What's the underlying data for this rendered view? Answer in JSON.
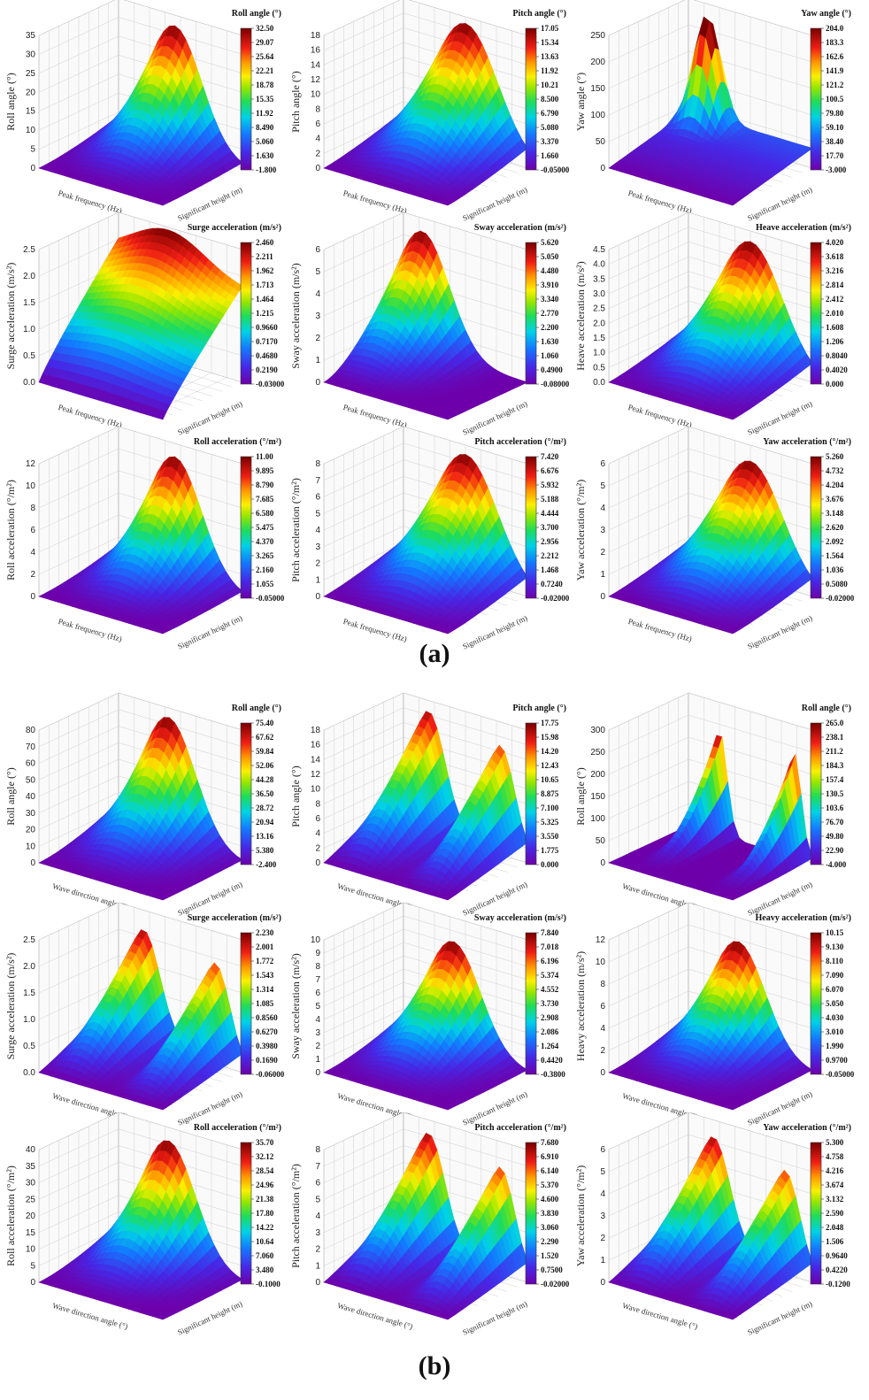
{
  "figure": {
    "label_a": "(a)",
    "label_b": "(b)"
  },
  "chart_data": [
    {
      "type": "surface",
      "group": "a",
      "title": "Roll angle (°)",
      "zlabel": "Roll angle (°)",
      "xlabel": "Peak frequency (Hz)",
      "ylabel": "Significant height (m)",
      "zticks": [
        "0",
        "5",
        "10",
        "15",
        "20",
        "25",
        "30",
        "35"
      ],
      "colorbar": [
        "32.50",
        "29.07",
        "25.64",
        "22.21",
        "18.78",
        "15.35",
        "11.92",
        "8.490",
        "5.060",
        "1.630",
        "-1.800"
      ],
      "peak": {
        "frac": 0.55,
        "height": 0.92
      },
      "shape": "back-peak"
    },
    {
      "type": "surface",
      "group": "a",
      "title": "Pitch angle (°)",
      "zlabel": "Pitch angle (°)",
      "xlabel": "Peak frequency (Hz)",
      "ylabel": "Significant height (m)",
      "zticks": [
        "0",
        "2",
        "4",
        "6",
        "8",
        "10",
        "12",
        "14",
        "16",
        "18"
      ],
      "colorbar": [
        "17.05",
        "15.34",
        "13.63",
        "11.92",
        "10.21",
        "8.500",
        "6.790",
        "5.080",
        "3.370",
        "1.660",
        "-0.05000"
      ],
      "peak": {
        "frac": 0.5,
        "height": 0.95
      },
      "shape": "center-peak"
    },
    {
      "type": "surface",
      "group": "a",
      "title": "Yaw angle (°)",
      "zlabel": "Yaw angle (°)",
      "xlabel": "Peak frequency (Hz)",
      "ylabel": "Significant height (m)",
      "zticks": [
        "0",
        "50",
        "100",
        "150",
        "200",
        "250"
      ],
      "colorbar": [
        "204.0",
        "183.3",
        "162.6",
        "141.9",
        "121.2",
        "100.5",
        "79.80",
        "59.10",
        "38.40",
        "17.70",
        "-3.000"
      ],
      "peak": {
        "frac": 0.65,
        "height": 0.82
      },
      "shape": "spike"
    },
    {
      "type": "surface",
      "group": "a",
      "title": "Surge acceleration (m/s²)",
      "zlabel": "Surge acceleration (m/s²)",
      "xlabel": "Peak frequency (Hz)",
      "ylabel": "Significant height (m)",
      "zticks": [
        "0.0",
        "0.5",
        "1.0",
        "1.5",
        "2.0",
        "2.5"
      ],
      "colorbar": [
        "2.460",
        "2.211",
        "1.962",
        "1.713",
        "1.464",
        "1.215",
        "0.9660",
        "0.7170",
        "0.4680",
        "0.2190",
        "-0.03000"
      ],
      "peak": {
        "frac": 0.4,
        "height": 0.98
      },
      "shape": "ridge"
    },
    {
      "type": "surface",
      "group": "a",
      "title": "Sway acceleration (m/s²)",
      "zlabel": "Sway acceleration (m/s²)",
      "xlabel": "Peak frequency (Hz)",
      "ylabel": "Significant height (m)",
      "zticks": [
        "0",
        "1",
        "2",
        "3",
        "4",
        "5",
        "6"
      ],
      "colorbar": [
        "5.620",
        "5.050",
        "4.480",
        "3.910",
        "3.340",
        "2.770",
        "2.200",
        "1.630",
        "1.060",
        "0.4900",
        "-0.08000"
      ],
      "peak": {
        "frac": 0.85,
        "height": 0.9
      },
      "shape": "back-peak"
    },
    {
      "type": "surface",
      "group": "a",
      "title": "Heave acceleration (m/s²)",
      "zlabel": "Heave acceleration (m/s²)",
      "xlabel": "Peak frequency (Hz)",
      "ylabel": "Significant height (m)",
      "zticks": [
        "0.0",
        "0.5",
        "1.0",
        "1.5",
        "2.0",
        "2.5",
        "3.0",
        "3.5",
        "4.0",
        "4.5"
      ],
      "colorbar": [
        "4.020",
        "3.618",
        "3.216",
        "2.814",
        "2.412",
        "2.010",
        "1.608",
        "1.206",
        "0.8040",
        "0.4020",
        "0.000"
      ],
      "peak": {
        "frac": 0.5,
        "height": 0.92
      },
      "shape": "center-peak"
    },
    {
      "type": "surface",
      "group": "a",
      "title": "Roll acceleration (°/m²)",
      "zlabel": "Roll acceleration (°/m²)",
      "xlabel": "Peak frequency (Hz)",
      "ylabel": "Significant height (m)",
      "zticks": [
        "0",
        "2",
        "4",
        "6",
        "8",
        "10",
        "12"
      ],
      "colorbar": [
        "11.00",
        "9.895",
        "8.790",
        "7.685",
        "6.580",
        "5.475",
        "4.370",
        "3.265",
        "2.160",
        "1.055",
        "-0.05000"
      ],
      "peak": {
        "frac": 0.55,
        "height": 0.9
      },
      "shape": "back-peak"
    },
    {
      "type": "surface",
      "group": "a",
      "title": "Pitch acceleration (°/m²)",
      "zlabel": "Pitch acceleration (°/m²)",
      "xlabel": "Peak frequency (Hz)",
      "ylabel": "Significant height (m)",
      "zticks": [
        "0",
        "1",
        "2",
        "3",
        "4",
        "5",
        "6",
        "7",
        "8"
      ],
      "colorbar": [
        "7.420",
        "6.676",
        "5.932",
        "5.188",
        "4.444",
        "3.700",
        "2.956",
        "2.212",
        "1.468",
        "0.7240",
        "-0.02000"
      ],
      "peak": {
        "frac": 0.5,
        "height": 0.93
      },
      "shape": "center-peak"
    },
    {
      "type": "surface",
      "group": "a",
      "title": "Yaw acceleration (°/m²)",
      "zlabel": "Yaw acceleration (°/m²)",
      "xlabel": "Peak frequency (Hz)",
      "ylabel": "Significant height (m)",
      "zticks": [
        "0",
        "1",
        "2",
        "3",
        "4",
        "5",
        "6"
      ],
      "colorbar": [
        "5.260",
        "4.732",
        "4.204",
        "3.676",
        "3.148",
        "2.620",
        "2.092",
        "1.564",
        "1.036",
        "0.5080",
        "-0.02000"
      ],
      "peak": {
        "frac": 0.5,
        "height": 0.88
      },
      "shape": "center-peak"
    },
    {
      "type": "surface",
      "group": "b",
      "title": "Roll angle (°)",
      "zlabel": "Roll angle (°)",
      "xlabel": "Wave direction angle (°)",
      "ylabel": "Significant height (m)",
      "zticks": [
        "0",
        "10",
        "20",
        "30",
        "40",
        "50",
        "60",
        "70",
        "80"
      ],
      "colorbar": [
        "75.40",
        "67.62",
        "59.84",
        "52.06",
        "44.28",
        "36.50",
        "28.72",
        "20.94",
        "13.16",
        "5.380",
        "-2.400"
      ],
      "peak": {
        "frac": 0.6,
        "height": 0.93
      },
      "shape": "back-peak"
    },
    {
      "type": "surface",
      "group": "b",
      "title": "Pitch angle (°)",
      "zlabel": "Pitch angle (°)",
      "xlabel": "Wave direction angle (°)",
      "ylabel": "Significant height (m)",
      "zticks": [
        "0",
        "2",
        "4",
        "6",
        "8",
        "10",
        "12",
        "14",
        "16",
        "18"
      ],
      "colorbar": [
        "17.75",
        "15.98",
        "14.20",
        "12.43",
        "10.65",
        "8.875",
        "7.100",
        "5.325",
        "3.550",
        "1.775",
        "0.000"
      ],
      "peak": {
        "frac": 0.45,
        "height": 0.97
      },
      "shape": "twin-ridge"
    },
    {
      "type": "surface",
      "group": "b",
      "title": "Roll angle (°)",
      "zlabel": "Roll angle (°)",
      "xlabel": "Wave direction angle (°)",
      "ylabel": "Significant height (m)",
      "zticks": [
        "0",
        "50",
        "100",
        "150",
        "200",
        "250",
        "300"
      ],
      "colorbar": [
        "265.0",
        "238.1",
        "211.2",
        "184.3",
        "157.4",
        "130.5",
        "103.6",
        "76.70",
        "49.80",
        "22.90",
        "-4.000"
      ],
      "peak": {
        "frac": 0.45,
        "height": 0.8
      },
      "shape": "twin-spike"
    },
    {
      "type": "surface",
      "group": "b",
      "title": "Surge acceleration (m/s²)",
      "zlabel": "Surge acceleration (m/s²)",
      "xlabel": "Wave direction angle (°)",
      "ylabel": "Significant height (m)",
      "zticks": [
        "0.0",
        "0.5",
        "1.0",
        "1.5",
        "2.0",
        "2.5"
      ],
      "colorbar": [
        "2.230",
        "2.001",
        "1.772",
        "1.543",
        "1.314",
        "1.085",
        "0.8560",
        "0.6270",
        "0.3980",
        "0.1690",
        "-0.06000"
      ],
      "peak": {
        "frac": 0.45,
        "height": 0.9
      },
      "shape": "twin-ridge"
    },
    {
      "type": "surface",
      "group": "b",
      "title": "Sway acceleration (m/s²)",
      "zlabel": "Sway acceleration (m/s²)",
      "xlabel": "Wave direction angle (°)",
      "ylabel": "Significant height (m)",
      "zticks": [
        "0",
        "1",
        "2",
        "3",
        "4",
        "5",
        "6",
        "7",
        "8",
        "9",
        "10"
      ],
      "colorbar": [
        "7.840",
        "7.018",
        "6.196",
        "5.374",
        "4.552",
        "3.730",
        "2.908",
        "2.086",
        "1.264",
        "0.4420",
        "-0.3800"
      ],
      "peak": {
        "frac": 0.6,
        "height": 0.82
      },
      "shape": "back-peak"
    },
    {
      "type": "surface",
      "group": "b",
      "title": "Heavy acceleration (m/s²)",
      "zlabel": "Heavy acceleration (m/s²)",
      "xlabel": "Wave direction angle (°)",
      "ylabel": "Significant height (m)",
      "zticks": [
        "0",
        "2",
        "4",
        "6",
        "8",
        "10",
        "12"
      ],
      "colorbar": [
        "10.15",
        "9.130",
        "8.110",
        "7.090",
        "6.070",
        "5.050",
        "4.030",
        "3.010",
        "1.990",
        "0.9700",
        "-0.05000"
      ],
      "peak": {
        "frac": 0.6,
        "height": 0.82
      },
      "shape": "back-peak"
    },
    {
      "type": "surface",
      "group": "b",
      "title": "Roll acceleration (°/m²)",
      "zlabel": "Roll acceleration (°/m²)",
      "xlabel": "Wave direction angle (°)",
      "ylabel": "Significant height (m)",
      "zticks": [
        "0",
        "5",
        "10",
        "15",
        "20",
        "25",
        "30",
        "35",
        "40"
      ],
      "colorbar": [
        "35.70",
        "32.12",
        "28.54",
        "24.96",
        "21.38",
        "17.80",
        "14.22",
        "10.64",
        "7.060",
        "3.480",
        "-0.1000"
      ],
      "peak": {
        "frac": 0.6,
        "height": 0.9
      },
      "shape": "back-peak"
    },
    {
      "type": "surface",
      "group": "b",
      "title": "Pitch acceleration (°/m²)",
      "zlabel": "Pitch acceleration (°/m²)",
      "xlabel": "Wave direction angle (°)",
      "ylabel": "Significant height (m)",
      "zticks": [
        "0",
        "1",
        "2",
        "3",
        "4",
        "5",
        "6",
        "7",
        "8"
      ],
      "colorbar": [
        "7.680",
        "6.910",
        "6.140",
        "5.370",
        "4.600",
        "3.830",
        "3.060",
        "2.290",
        "1.520",
        "0.7500",
        "-0.02000"
      ],
      "peak": {
        "frac": 0.45,
        "height": 0.95
      },
      "shape": "twin-ridge"
    },
    {
      "type": "surface",
      "group": "b",
      "title": "Yaw acceleration (°/m²)",
      "zlabel": "Yaw acceleration (°/m²)",
      "xlabel": "Wave direction angle (°)",
      "ylabel": "Significant height (m)",
      "zticks": [
        "0",
        "1",
        "2",
        "3",
        "4",
        "5",
        "6"
      ],
      "colorbar": [
        "5.300",
        "4.758",
        "4.216",
        "3.674",
        "3.132",
        "2.590",
        "2.048",
        "1.506",
        "0.9640",
        "0.4220",
        "-0.1200"
      ],
      "peak": {
        "frac": 0.45,
        "height": 0.92
      },
      "shape": "twin-ridge"
    }
  ]
}
